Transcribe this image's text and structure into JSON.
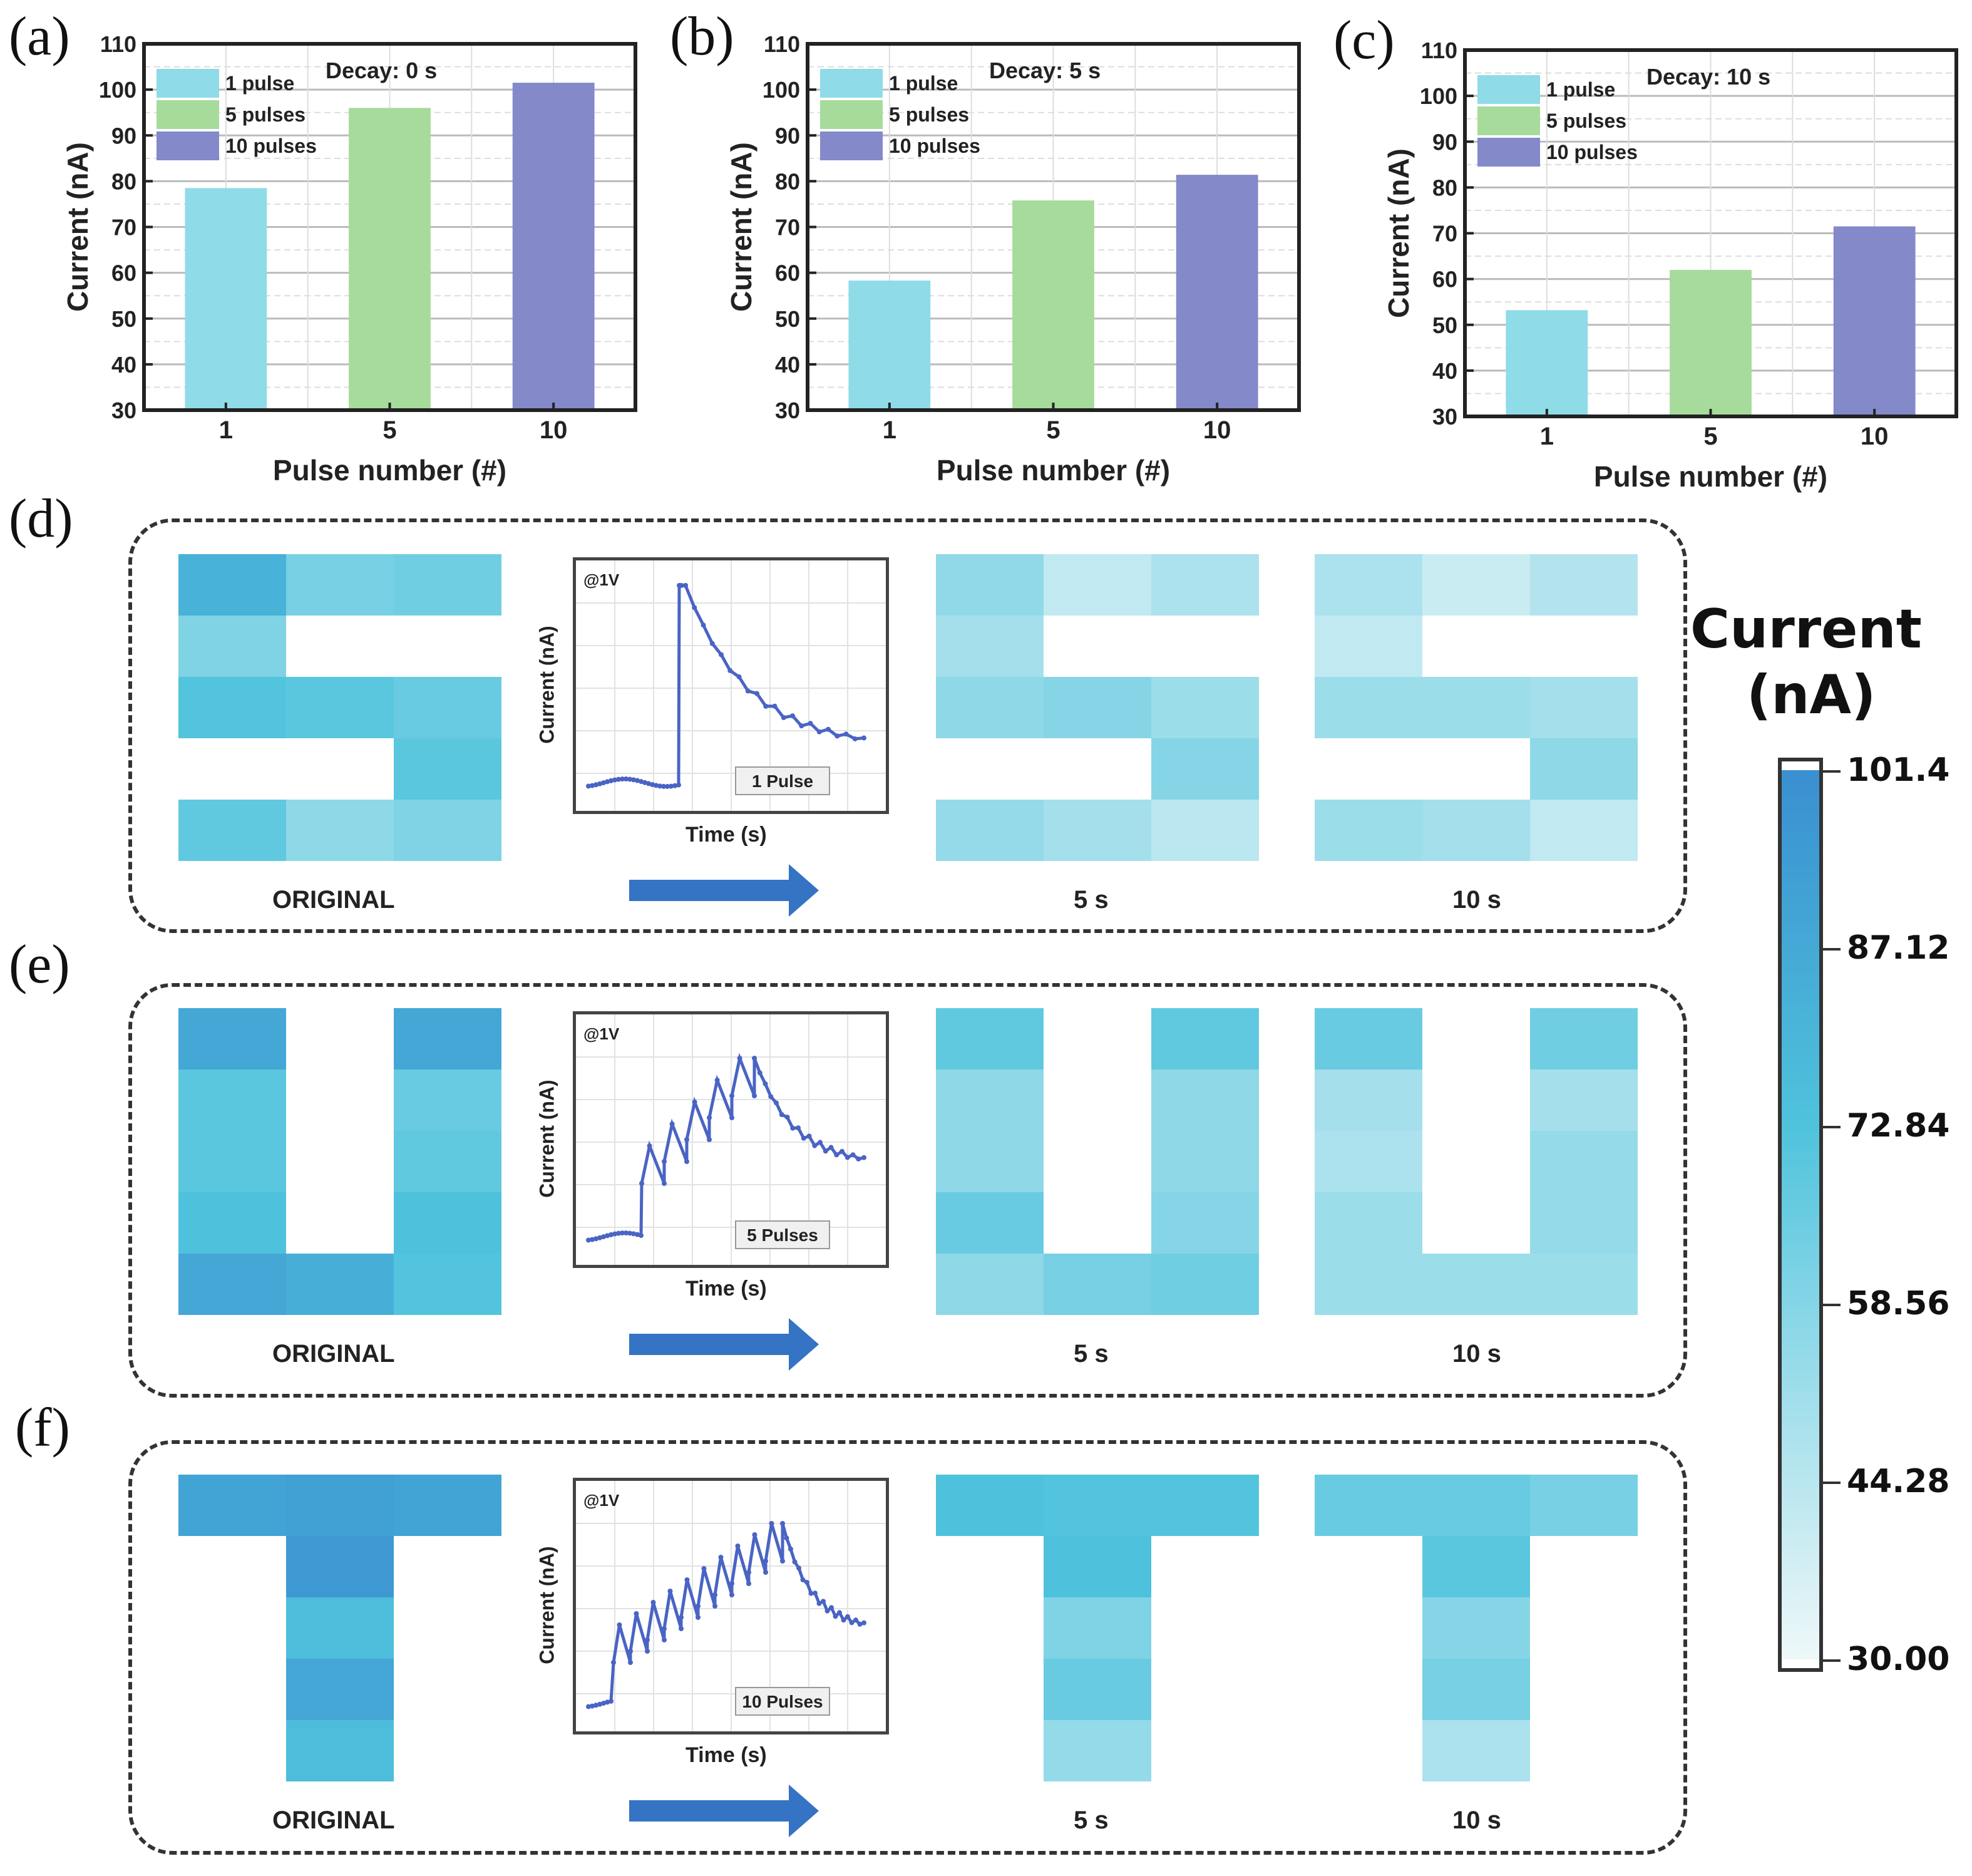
{
  "panel_letters": [
    "(a)",
    "(b)",
    "(c)",
    "(d)",
    "(e)",
    "(f)"
  ],
  "chart_data": [
    {
      "type": "bar",
      "panel": "(a)",
      "annotation": "Decay: 0 s",
      "categories": [
        "1",
        "5",
        "10"
      ],
      "values": [
        78.5,
        96,
        101.5
      ],
      "series_colors": [
        "#8fdbe8",
        "#a7db9b",
        "#8389c9"
      ],
      "legend": [
        "1 pulse",
        "5 pulses",
        "10 pulses"
      ],
      "legend_position": "top-left",
      "xlabel": "Pulse number (#)",
      "ylabel": "Current (nA)",
      "ylim": [
        30,
        110
      ],
      "yticks": [
        30,
        40,
        50,
        60,
        70,
        80,
        90,
        100,
        110
      ],
      "grid": true
    },
    {
      "type": "bar",
      "panel": "(b)",
      "annotation": "Decay: 5 s",
      "categories": [
        "1",
        "5",
        "10"
      ],
      "values": [
        58.3,
        75.8,
        81.4
      ],
      "series_colors": [
        "#8fdbe8",
        "#a7db9b",
        "#8389c9"
      ],
      "legend": [
        "1 pulse",
        "5 pulses",
        "10 pulses"
      ],
      "legend_position": "top-left",
      "xlabel": "Pulse number (#)",
      "ylabel": "Current (nA)",
      "ylim": [
        30,
        110
      ],
      "yticks": [
        30,
        40,
        50,
        60,
        70,
        80,
        90,
        100,
        110
      ],
      "grid": true
    },
    {
      "type": "bar",
      "panel": "(c)",
      "annotation": "Decay: 10 s",
      "categories": [
        "1",
        "5",
        "10"
      ],
      "values": [
        53.2,
        62,
        71.5
      ],
      "series_colors": [
        "#8fdbe8",
        "#a7db9b",
        "#8389c9"
      ],
      "legend": [
        "1 pulse",
        "5 pulses",
        "10 pulses"
      ],
      "legend_position": "top-left",
      "xlabel": "Pulse number (#)",
      "ylabel": "Current (nA)",
      "ylim": [
        30,
        110
      ],
      "yticks": [
        30,
        40,
        50,
        60,
        70,
        80,
        90,
        100,
        110
      ],
      "grid": true
    },
    {
      "type": "heatmap",
      "title": "Pixel current maps",
      "colorbar": {
        "title_line1": "Current",
        "title_line2": "(nA)",
        "ticks": [
          "101.4",
          "87.12",
          "72.84",
          "58.56",
          "44.28",
          "30.00"
        ],
        "range": [
          30,
          101.4
        ],
        "color_low": "#eef8f9",
        "color_mid": "#4fc3dc",
        "color_high": "#3a8fd0"
      },
      "rows": [
        {
          "panel": "(d)",
          "letter": "S",
          "pulses_label": "1 Pulse",
          "voltage_label": "@1V",
          "inset_xlabel": "Time (s)",
          "inset_ylabel": "Current (nA)",
          "captions": [
            "ORIGINAL",
            "5 s",
            "10 s"
          ],
          "maps": [
            [
              [
                82,
                62,
                64
              ],
              [
                60,
                null,
                null
              ],
              [
                72,
                70,
                66
              ],
              [
                null,
                null,
                70
              ],
              [
                68,
                56,
                60
              ]
            ],
            [
              [
                55,
                42,
                48
              ],
              [
                50,
                null,
                null
              ],
              [
                56,
                58,
                52
              ],
              [
                null,
                null,
                58
              ],
              [
                54,
                50,
                44
              ]
            ],
            [
              [
                48,
                40,
                46
              ],
              [
                42,
                null,
                null
              ],
              [
                52,
                52,
                50
              ],
              [
                null,
                null,
                56
              ],
              [
                52,
                50,
                42
              ]
            ]
          ]
        },
        {
          "panel": "(e)",
          "letter": "U",
          "pulses_label": "5 Pulses",
          "voltage_label": "@1V",
          "inset_xlabel": "Time (s)",
          "inset_ylabel": "Current (nA)",
          "captions": [
            "ORIGINAL",
            "5 s",
            "10 s"
          ],
          "maps": [
            [
              [
                88,
                null,
                88
              ],
              [
                70,
                null,
                66
              ],
              [
                70,
                null,
                68
              ],
              [
                74,
                null,
                74
              ],
              [
                88,
                84,
                72
              ]
            ],
            [
              [
                68,
                null,
                68
              ],
              [
                56,
                null,
                56
              ],
              [
                56,
                null,
                56
              ],
              [
                66,
                null,
                58
              ],
              [
                56,
                62,
                64
              ]
            ],
            [
              [
                66,
                null,
                64
              ],
              [
                50,
                null,
                50
              ],
              [
                48,
                null,
                54
              ],
              [
                52,
                null,
                54
              ],
              [
                52,
                52,
                52
              ]
            ]
          ]
        },
        {
          "panel": "(f)",
          "letter": "T",
          "pulses_label": "10 Pulses",
          "voltage_label": "@1V",
          "inset_xlabel": "Time (s)",
          "inset_ylabel": "Current (nA)",
          "captions": [
            "ORIGINAL",
            "5 s",
            "10 s"
          ],
          "maps": [
            [
              [
                90,
                92,
                90
              ],
              [
                null,
                96,
                null
              ],
              [
                null,
                76,
                null
              ],
              [
                null,
                88,
                null
              ],
              [
                null,
                76,
                null
              ]
            ],
            [
              [
                74,
                72,
                72
              ],
              [
                null,
                74,
                null
              ],
              [
                null,
                60,
                null
              ],
              [
                null,
                66,
                null
              ],
              [
                null,
                54,
                null
              ]
            ],
            [
              [
                66,
                66,
                62
              ],
              [
                null,
                70,
                null
              ],
              [
                null,
                58,
                null
              ],
              [
                null,
                62,
                null
              ],
              [
                null,
                48,
                null
              ]
            ]
          ]
        }
      ]
    }
  ]
}
